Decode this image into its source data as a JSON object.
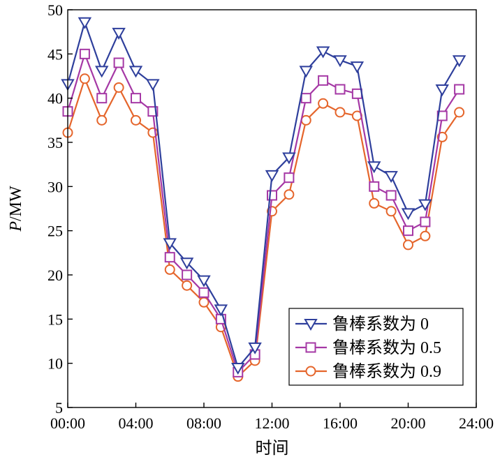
{
  "chart_data": {
    "type": "line",
    "xlabel": "时间",
    "ylabel_italic": "P",
    "ylabel_unit": "/MW",
    "x_tick_labels": [
      "00:00",
      "04:00",
      "08:00",
      "12:00",
      "16:00",
      "20:00",
      "24:00"
    ],
    "x_ticks_hours": [
      0,
      4,
      8,
      12,
      16,
      20,
      24
    ],
    "xlim": [
      0,
      24
    ],
    "y_ticks": [
      5,
      10,
      15,
      20,
      25,
      30,
      35,
      40,
      45,
      50
    ],
    "ylim": [
      5,
      50
    ],
    "grid": false,
    "legend_position": "bottom-right",
    "x": [
      0,
      1,
      2,
      3,
      4,
      5,
      6,
      7,
      8,
      9,
      10,
      11,
      12,
      13,
      14,
      15,
      16,
      17,
      18,
      19,
      20,
      21,
      22,
      23
    ],
    "series": [
      {
        "name": "鲁棒系数为 0",
        "color": "#2E3F9C",
        "marker": "triangle-down",
        "values": [
          41.6,
          48.6,
          43.1,
          47.4,
          43.1,
          41.6,
          23.6,
          21.4,
          19.4,
          16.1,
          9.5,
          11.8,
          31.3,
          33.3,
          43.1,
          45.3,
          44.3,
          43.6,
          32.3,
          31.2,
          27.0,
          28.0,
          41.0,
          44.3
        ]
      },
      {
        "name": "鲁棒系数为 0.5",
        "color": "#A538A5",
        "marker": "square",
        "values": [
          38.5,
          45.0,
          40.0,
          44.0,
          40.0,
          38.5,
          22.0,
          20.0,
          18.0,
          15.0,
          9.0,
          11.0,
          29.0,
          31.0,
          40.0,
          42.0,
          41.0,
          40.5,
          30.0,
          29.0,
          25.0,
          26.0,
          38.0,
          41.0
        ]
      },
      {
        "name": "鲁棒系数为 0.9",
        "color": "#E5652B",
        "marker": "circle",
        "values": [
          36.1,
          42.2,
          37.5,
          41.2,
          37.5,
          36.1,
          20.6,
          18.8,
          16.9,
          14.1,
          8.5,
          10.3,
          27.2,
          29.1,
          37.5,
          39.4,
          38.4,
          38.0,
          28.1,
          27.2,
          23.4,
          24.4,
          35.6,
          38.4
        ]
      }
    ]
  }
}
